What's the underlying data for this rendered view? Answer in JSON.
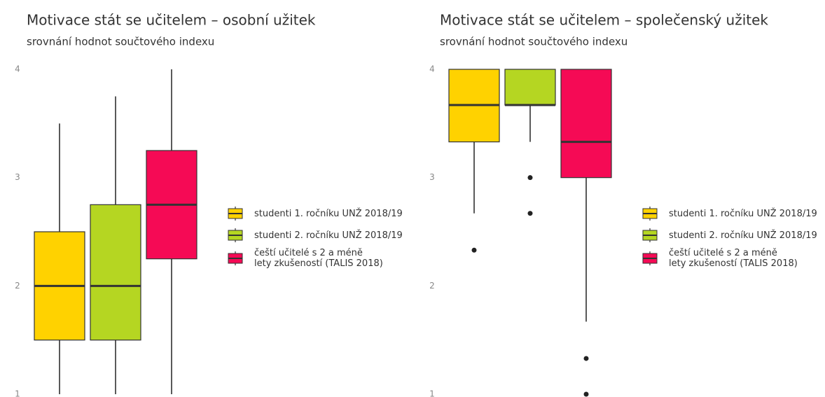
{
  "chart_data": [
    {
      "type": "box",
      "title": "Motivace stát se učitelem – osobní užitek",
      "subtitle": "srovnání hodnot součtového indexu",
      "ylim": [
        1,
        4
      ],
      "yticks": [
        1,
        2,
        3,
        4
      ],
      "legend": "right",
      "series": [
        {
          "name": "studenti 1. ročníku UNŽ 2018/19",
          "color": "#ffd200",
          "whisker_low": 1,
          "q1": 1.5,
          "median": 2,
          "q3": 2.5,
          "whisker_high": 3.5,
          "outliers": []
        },
        {
          "name": "studenti 2. ročníku UNŽ 2018/19",
          "color": "#b5d622",
          "whisker_low": 1,
          "q1": 1.5,
          "median": 2,
          "q3": 2.75,
          "whisker_high": 3.75,
          "outliers": []
        },
        {
          "name": "čeští učitelé s 2 a méně\nlety zkušeností (TALIS 2018)",
          "color": "#f50a55",
          "whisker_low": 1,
          "q1": 2.25,
          "median": 2.75,
          "q3": 3.25,
          "whisker_high": 4,
          "outliers": []
        }
      ]
    },
    {
      "type": "box",
      "title": "Motivace stát se učitelem – společenský užitek",
      "subtitle": "srovnání hodnot součtového indexu",
      "ylim": [
        1,
        4
      ],
      "yticks": [
        1,
        2,
        3,
        4
      ],
      "legend": "right",
      "series": [
        {
          "name": "studenti 1. ročníku UNŽ 2018/19",
          "color": "#ffd200",
          "whisker_low": 2.67,
          "q1": 3.33,
          "median": 3.67,
          "q3": 4,
          "whisker_high": 4,
          "outliers": [
            2.33
          ]
        },
        {
          "name": "studenti 2. ročníku UNŽ 2018/19",
          "color": "#b5d622",
          "whisker_low": 3.33,
          "q1": 3.67,
          "median": 3.67,
          "q3": 4,
          "whisker_high": 4,
          "outliers": [
            3,
            2.67
          ]
        },
        {
          "name": "čeští učitelé s 2 a méně\nlety zkušeností (TALIS 2018)",
          "color": "#f50a55",
          "whisker_low": 1.67,
          "q1": 3,
          "median": 3.33,
          "q3": 4,
          "whisker_high": 4,
          "outliers": [
            1.33,
            1
          ]
        }
      ]
    }
  ]
}
